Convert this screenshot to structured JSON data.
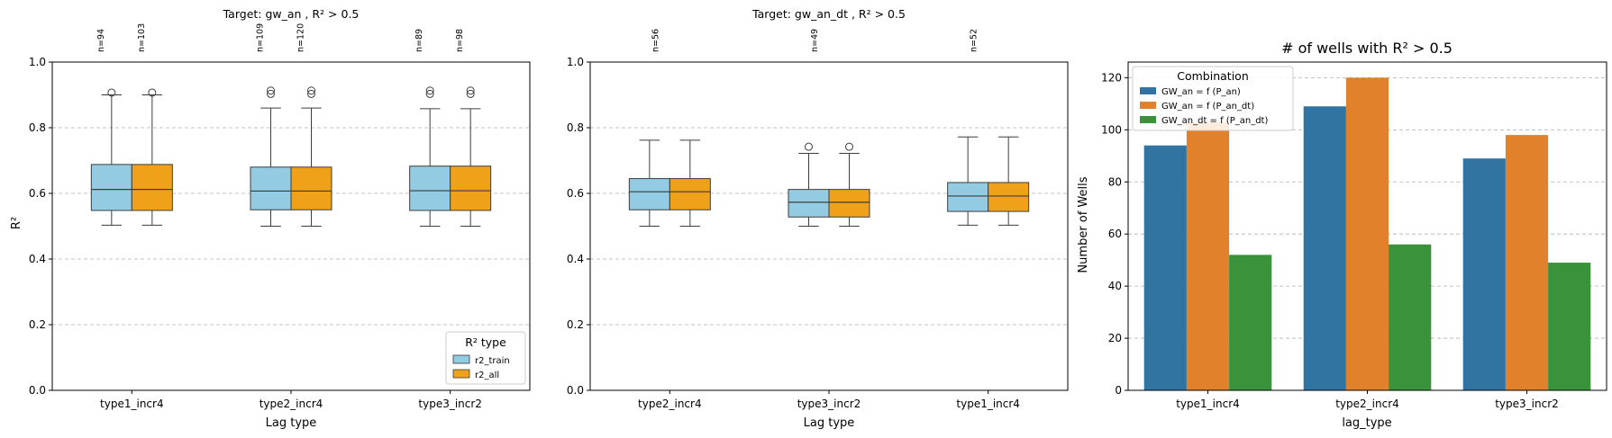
{
  "chart_data": [
    {
      "type": "box",
      "title": "Target: gw_an , R² > 0.5",
      "xlabel": "Lag type",
      "ylabel": "R²",
      "ylim": [
        0,
        1.0
      ],
      "yticks": [
        "0.0",
        "0.2",
        "0.4",
        "0.6",
        "0.8",
        "1.0"
      ],
      "grid": "y, dashed",
      "categories": [
        "type1_incr4",
        "type2_incr4",
        "type3_incr2"
      ],
      "legend": {
        "title": "R² type",
        "placement": "lower right"
      },
      "series": [
        {
          "name": "r2_train",
          "color": "#92cbe2",
          "boxes": [
            {
              "n_label": "n=94",
              "whislo": 0.503,
              "q1": 0.548,
              "med": 0.612,
              "q3": 0.688,
              "whishi": 0.9,
              "fliers": [
                0.907
              ]
            },
            {
              "n_label": "n=109",
              "whislo": 0.5,
              "q1": 0.55,
              "med": 0.607,
              "q3": 0.68,
              "whishi": 0.86,
              "fliers": [
                0.903,
                0.913
              ]
            },
            {
              "n_label": "n=89",
              "whislo": 0.5,
              "q1": 0.548,
              "med": 0.608,
              "q3": 0.683,
              "whishi": 0.858,
              "fliers": [
                0.903,
                0.913
              ]
            }
          ]
        },
        {
          "name": "r2_all",
          "color": "#f0a11a",
          "boxes": [
            {
              "n_label": "n=103",
              "whislo": 0.503,
              "q1": 0.548,
              "med": 0.612,
              "q3": 0.688,
              "whishi": 0.9,
              "fliers": [
                0.907
              ]
            },
            {
              "n_label": "n=120",
              "whislo": 0.5,
              "q1": 0.55,
              "med": 0.607,
              "q3": 0.68,
              "whishi": 0.86,
              "fliers": [
                0.903,
                0.913
              ]
            },
            {
              "n_label": "n=98",
              "whislo": 0.5,
              "q1": 0.548,
              "med": 0.608,
              "q3": 0.683,
              "whishi": 0.858,
              "fliers": [
                0.903,
                0.913
              ]
            }
          ]
        }
      ]
    },
    {
      "type": "box",
      "title": "Target: gw_an_dt , R² > 0.5",
      "xlabel": "Lag type",
      "ylabel": "",
      "ylim": [
        0,
        1.0
      ],
      "yticks": [
        "0.0",
        "0.2",
        "0.4",
        "0.6",
        "0.8",
        "1.0"
      ],
      "grid": "y, dashed",
      "categories": [
        "type2_incr4",
        "type3_incr2",
        "type1_incr4"
      ],
      "n_labels": [
        "n=56",
        "n=49",
        "n=52"
      ],
      "series": [
        {
          "name": "r2_train",
          "color": "#92cbe2",
          "boxes": [
            {
              "whislo": 0.5,
              "q1": 0.55,
              "med": 0.605,
              "q3": 0.645,
              "whishi": 0.762,
              "fliers": []
            },
            {
              "whislo": 0.5,
              "q1": 0.528,
              "med": 0.573,
              "q3": 0.612,
              "whishi": 0.722,
              "fliers": [
                0.742
              ]
            },
            {
              "whislo": 0.503,
              "q1": 0.545,
              "med": 0.592,
              "q3": 0.633,
              "whishi": 0.772,
              "fliers": []
            }
          ]
        },
        {
          "name": "r2_all",
          "color": "#f0a11a",
          "boxes": [
            {
              "whislo": 0.5,
              "q1": 0.55,
              "med": 0.605,
              "q3": 0.645,
              "whishi": 0.762,
              "fliers": []
            },
            {
              "whislo": 0.5,
              "q1": 0.528,
              "med": 0.573,
              "q3": 0.612,
              "whishi": 0.722,
              "fliers": [
                0.742
              ]
            },
            {
              "whislo": 0.503,
              "q1": 0.545,
              "med": 0.592,
              "q3": 0.633,
              "whishi": 0.772,
              "fliers": []
            }
          ]
        }
      ]
    },
    {
      "type": "bar",
      "title": "# of wells with R² > 0.5",
      "xlabel": "lag_type",
      "ylabel": "Number of Wells",
      "ylim": [
        0,
        126
      ],
      "yticks": [
        0,
        20,
        40,
        60,
        80,
        100,
        120
      ],
      "grid": "y, dashed",
      "categories": [
        "type1_incr4",
        "type2_incr4",
        "type3_incr2"
      ],
      "legend": {
        "title": "Combination",
        "placement": "upper left"
      },
      "series": [
        {
          "name": "GW_an = f (P_an)",
          "color": "#3274a1",
          "values": [
            94,
            109,
            89
          ]
        },
        {
          "name": "GW_an = f (P_an_dt)",
          "color": "#e1812c",
          "values": [
            103,
            120,
            98
          ]
        },
        {
          "name": "GW_an_dt = f (P_an_dt)",
          "color": "#3a923a",
          "values": [
            52,
            56,
            49
          ]
        }
      ]
    }
  ]
}
